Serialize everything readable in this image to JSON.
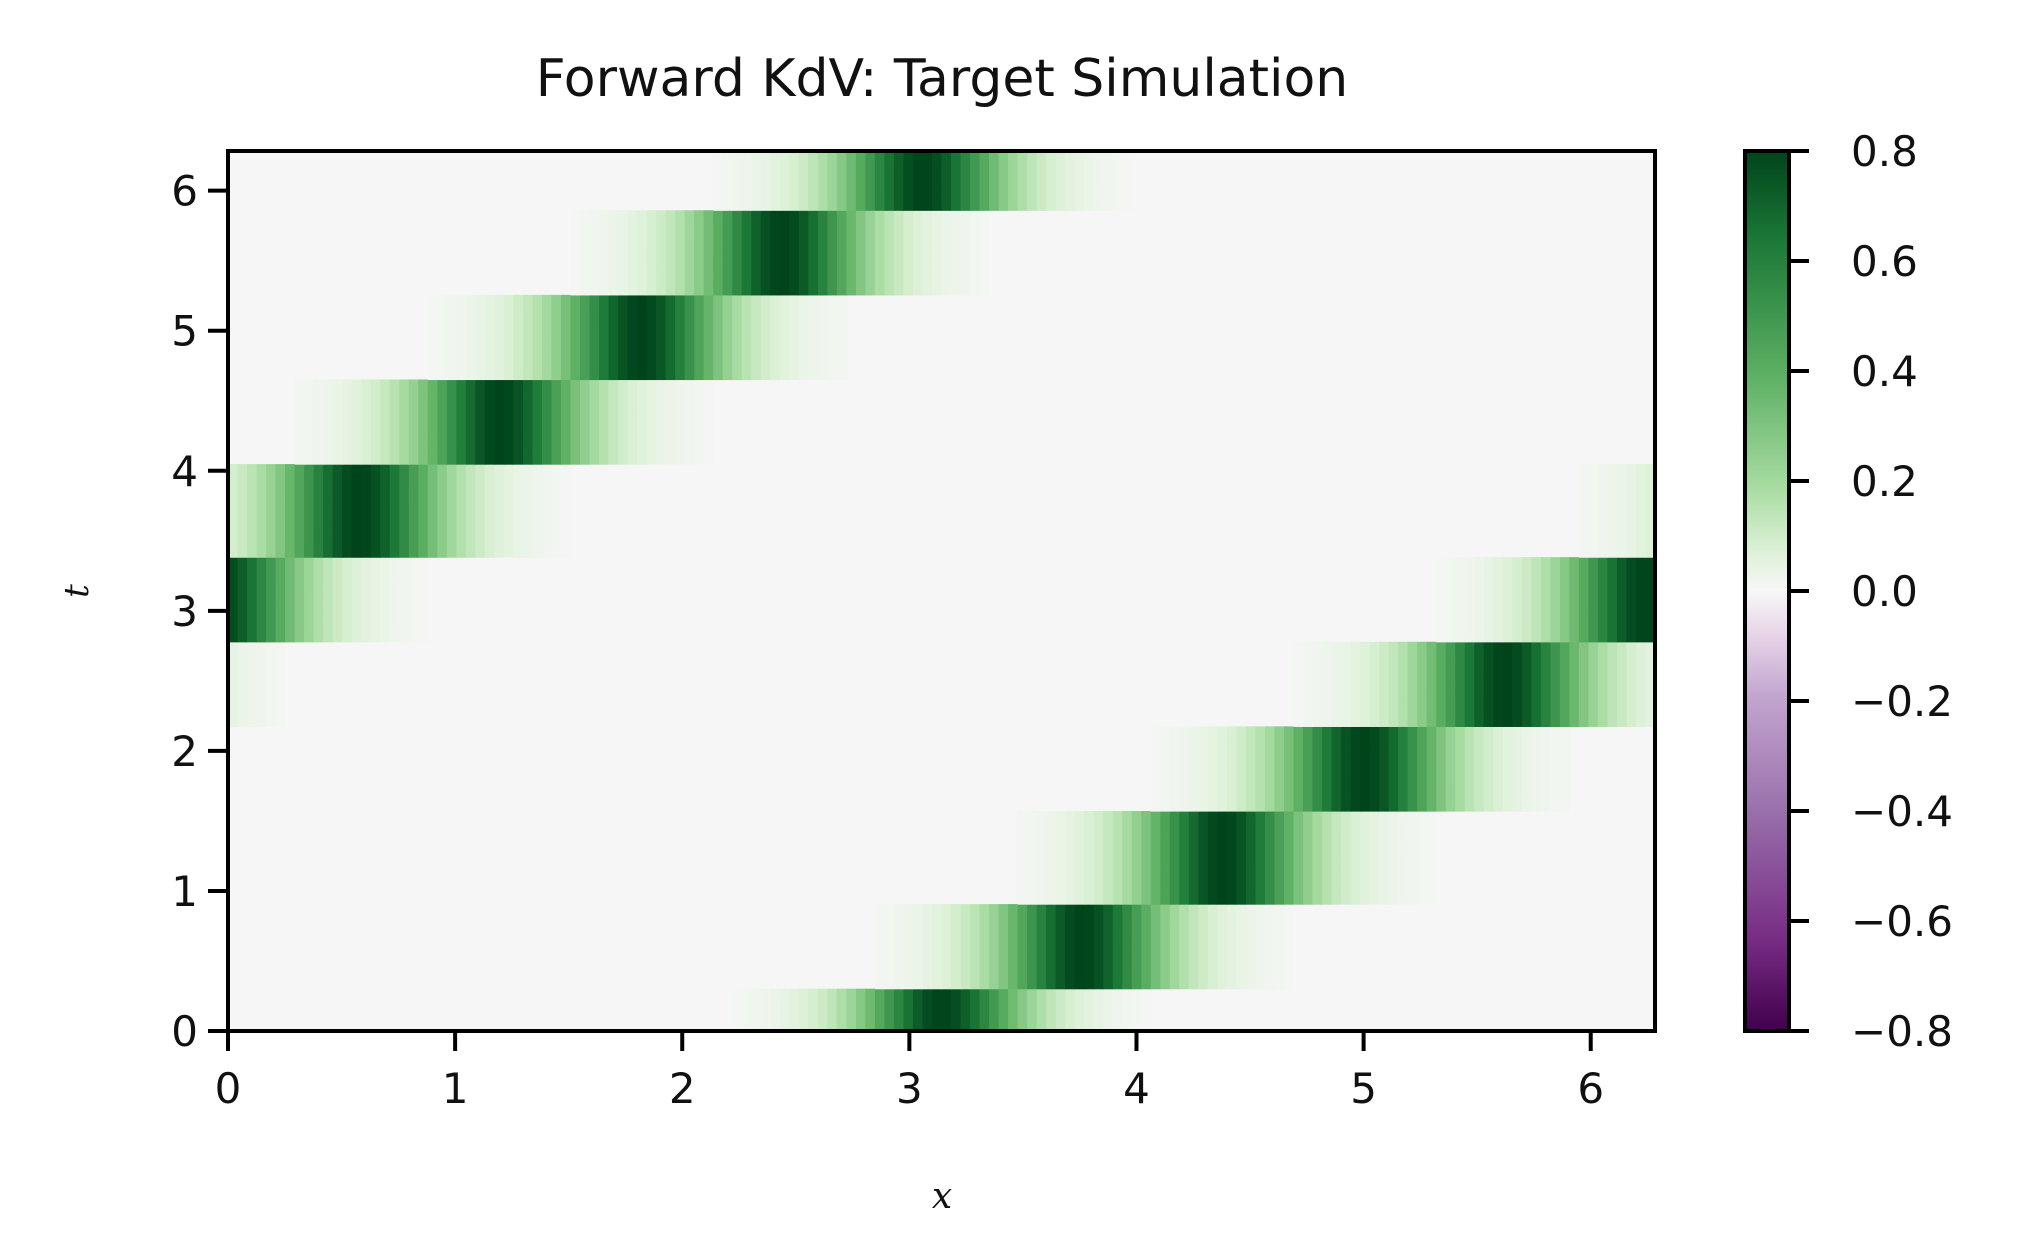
{
  "chart_data": {
    "type": "heatmap",
    "title": "Forward KdV: Target Simulation",
    "xlabel": "x",
    "ylabel": "t",
    "xlim": [
      0,
      6.283
    ],
    "ylim": [
      0,
      6.283
    ],
    "xticks": [
      0,
      1,
      2,
      3,
      4,
      5,
      6
    ],
    "xtick_labels": [
      "0",
      "1",
      "2",
      "3",
      "4",
      "5",
      "6"
    ],
    "yticks": [
      0,
      1,
      2,
      3,
      4,
      5,
      6
    ],
    "ytick_labels": [
      "0",
      "1",
      "2",
      "3",
      "4",
      "5",
      "6"
    ],
    "colorbar": {
      "colormap": "PRGn",
      "vmin": -0.8,
      "vmax": 0.8,
      "ticks": [
        0.8,
        0.6,
        0.4,
        0.2,
        0.0,
        -0.2,
        -0.4,
        -0.6,
        -0.8
      ],
      "tick_labels": [
        "0.8",
        "0.6",
        "0.4",
        "0.2",
        "0.0",
        "−0.2",
        "−0.4",
        "−0.6",
        "−0.8"
      ]
    },
    "field": {
      "description_values": "single soliton travelling rightward with periodic wrap",
      "peak_amplitude": 0.8,
      "initial_center_x": 3.14,
      "speed": 1.0,
      "pulse_width": 0.32,
      "time_step_blocks": 0.62
    },
    "colors": {
      "purple_dark": "#40004b",
      "purple_mid": "#9970ab",
      "purple_light": "#e7d4e8",
      "neutral": "#f7f7f7",
      "green_light": "#d9f0d3",
      "green_mid": "#5aae61",
      "green_dark": "#00441b"
    }
  }
}
